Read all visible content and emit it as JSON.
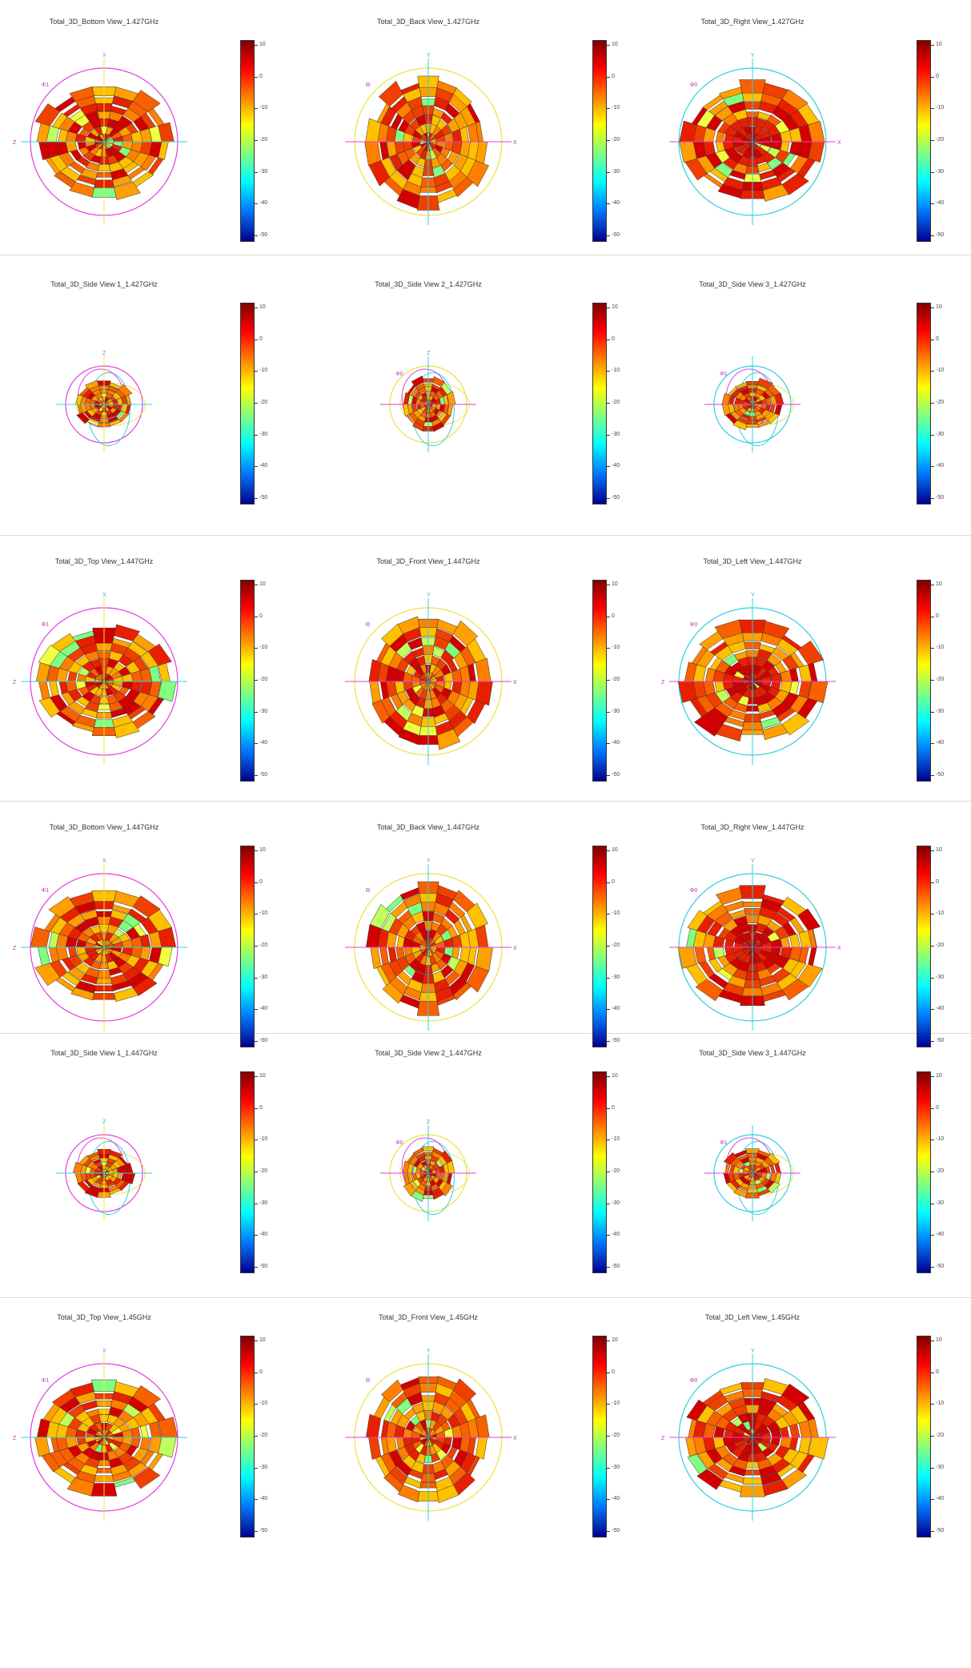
{
  "colors": {
    "colormap": [
      "#800000",
      "#ff0000",
      "#ff8000",
      "#ffff00",
      "#80ff80",
      "#00ffff",
      "#0080ff",
      "#00008f"
    ],
    "axis_magenta": "#e040e0",
    "axis_cyan": "#30d0e0",
    "axis_yellow": "#f0e040"
  },
  "chart_data": [
    {
      "type": "heatmap",
      "title": "Total_3D_Bottom View_1.427GHz",
      "colorbar": [
        10,
        0,
        -10,
        -20,
        -30,
        -40,
        -50
      ],
      "axis_labels": {
        "h": "Z",
        "v": "X",
        "corner": "Φ1"
      }
    },
    {
      "type": "heatmap",
      "title": "Total_3D_Back View_1.427GHz",
      "colorbar": [
        10,
        0,
        -10,
        -20,
        -30,
        -40,
        -50
      ],
      "axis_labels": {
        "h": "X",
        "v": "Y",
        "corner": "Θ"
      }
    },
    {
      "type": "heatmap",
      "title": "Total_3D_Right View_1.427GHz",
      "colorbar": [
        10,
        0,
        -10,
        -20,
        -30,
        -40,
        -50
      ],
      "axis_labels": {
        "h": "X",
        "v": "Y",
        "corner": "Φ0"
      }
    },
    {
      "type": "heatmap",
      "title": "Total_3D_Side View 1_1.427GHz",
      "colorbar": [
        10,
        0,
        -10,
        -20,
        -30,
        -40,
        -50
      ],
      "axis_labels": {
        "h": "",
        "v": "Z",
        "corner": ""
      }
    },
    {
      "type": "heatmap",
      "title": "Total_3D_Side View 2_1.427GHz",
      "colorbar": [
        10,
        0,
        -10,
        -20,
        -30,
        -40,
        -50
      ],
      "axis_labels": {
        "h": "",
        "v": "Z",
        "corner": "Φ0"
      }
    },
    {
      "type": "heatmap",
      "title": "Total_3D_Side View 3_1.427GHz",
      "colorbar": [
        10,
        0,
        -10,
        -20,
        -30,
        -40,
        -50
      ],
      "axis_labels": {
        "h": "",
        "v": "",
        "corner": "Φ1"
      }
    },
    {
      "type": "heatmap",
      "title": "Total_3D_Top View_1.447GHz",
      "colorbar": [
        10,
        0,
        -10,
        -20,
        -30,
        -40,
        -50
      ],
      "axis_labels": {
        "h": "Z",
        "v": "X",
        "corner": "Φ1"
      }
    },
    {
      "type": "heatmap",
      "title": "Total_3D_Front View_1.447GHz",
      "colorbar": [
        10,
        0,
        -10,
        -20,
        -30,
        -40,
        -50
      ],
      "axis_labels": {
        "h": "X",
        "v": "Y",
        "corner": "Θ"
      }
    },
    {
      "type": "heatmap",
      "title": "Total_3D_Left View_1.447GHz",
      "colorbar": [
        10,
        0,
        -10,
        -20,
        -30,
        -40,
        -50
      ],
      "axis_labels": {
        "h": "Z",
        "v": "Y",
        "corner": "Φ0"
      }
    },
    {
      "type": "heatmap",
      "title": "Total_3D_Bottom View_1.447GHz",
      "colorbar": [
        10,
        0,
        -10,
        -20,
        -30,
        -40,
        -50
      ],
      "axis_labels": {
        "h": "Z",
        "v": "X",
        "corner": "Φ1"
      }
    },
    {
      "type": "heatmap",
      "title": "Total_3D_Back View_1.447GHz",
      "colorbar": [
        10,
        0,
        -10,
        -20,
        -30,
        -40,
        -50
      ],
      "axis_labels": {
        "h": "X",
        "v": "Y",
        "corner": "Θ"
      }
    },
    {
      "type": "heatmap",
      "title": "Total_3D_Right View_1.447GHz",
      "colorbar": [
        10,
        0,
        -10,
        -20,
        -30,
        -40,
        -50
      ],
      "axis_labels": {
        "h": "X",
        "v": "Y",
        "corner": "Φ0"
      }
    },
    {
      "type": "heatmap",
      "title": "Total_3D_Side View 1_1.447GHz",
      "colorbar": [
        10,
        0,
        -10,
        -20,
        -30,
        -40,
        -50
      ],
      "axis_labels": {
        "h": "",
        "v": "Z",
        "corner": ""
      }
    },
    {
      "type": "heatmap",
      "title": "Total_3D_Side View 2_1.447GHz",
      "colorbar": [
        10,
        0,
        -10,
        -20,
        -30,
        -40,
        -50
      ],
      "axis_labels": {
        "h": "",
        "v": "Z",
        "corner": "Φ0"
      }
    },
    {
      "type": "heatmap",
      "title": "Total_3D_Side View 3_1.447GHz",
      "colorbar": [
        10,
        0,
        -10,
        -20,
        -30,
        -40,
        -50
      ],
      "axis_labels": {
        "h": "",
        "v": "",
        "corner": "Φ1"
      }
    },
    {
      "type": "heatmap",
      "title": "Total_3D_Top View_1.45GHz",
      "colorbar": [
        10,
        0,
        -10,
        -20,
        -30,
        -40,
        -50
      ],
      "axis_labels": {
        "h": "Z",
        "v": "X",
        "corner": "Φ1"
      }
    },
    {
      "type": "heatmap",
      "title": "Total_3D_Front View_1.45GHz",
      "colorbar": [
        10,
        0,
        -10,
        -20,
        -30,
        -40,
        -50
      ],
      "axis_labels": {
        "h": "X",
        "v": "Y",
        "corner": "Θ"
      }
    },
    {
      "type": "heatmap",
      "title": "Total_3D_Left View_1.45GHz",
      "colorbar": [
        10,
        0,
        -10,
        -20,
        -30,
        -40,
        -50
      ],
      "axis_labels": {
        "h": "Z",
        "v": "Y",
        "corner": "Φ0"
      }
    }
  ]
}
